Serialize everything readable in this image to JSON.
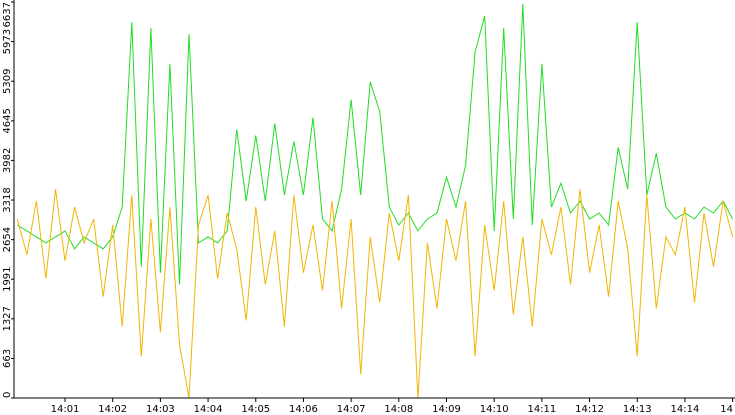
{
  "chart_data": {
    "type": "line",
    "x": [
      0,
      0.2,
      0.4,
      0.6,
      0.8,
      1.0,
      1.2,
      1.4,
      1.6,
      1.8,
      2.0,
      2.2,
      2.4,
      2.6,
      2.8,
      3.0,
      3.2,
      3.4,
      3.6,
      3.8,
      4.0,
      4.2,
      4.4,
      4.6,
      4.8,
      5.0,
      5.2,
      5.4,
      5.6,
      5.8,
      6.0,
      6.2,
      6.4,
      6.6,
      6.8,
      7.0,
      7.2,
      7.4,
      7.6,
      7.8,
      8.0,
      8.2,
      8.4,
      8.6,
      8.8,
      9.0,
      9.2,
      9.4,
      9.6,
      9.8,
      10.0,
      10.2,
      10.4,
      10.6,
      10.8,
      11.0,
      11.2,
      11.4,
      11.6,
      11.8,
      12.0,
      12.2,
      12.4,
      12.6,
      12.8,
      13.0,
      13.2,
      13.4,
      13.6,
      13.8,
      14.0,
      14.2,
      14.4,
      14.6,
      14.8,
      15.0
    ],
    "series": [
      {
        "color": "#22dd22",
        "values": [
          2900,
          2800,
          2700,
          2600,
          2700,
          2800,
          2500,
          2700,
          2600,
          2500,
          2700,
          3200,
          6300,
          2200,
          6200,
          2100,
          5600,
          1900,
          6100,
          2600,
          2700,
          2600,
          2800,
          4500,
          3300,
          4400,
          3300,
          4600,
          3400,
          4300,
          3400,
          4700,
          3000,
          2800,
          3500,
          5000,
          3400,
          5300,
          4800,
          3200,
          2900,
          3100,
          2800,
          3000,
          3100,
          3700,
          3200,
          3900,
          5800,
          6400,
          2800,
          6200,
          3000,
          6600,
          2900,
          5600,
          3200,
          3600,
          3100,
          3300,
          3000,
          3100,
          2900,
          4200,
          3500,
          6300,
          3400,
          4100,
          3200,
          3000,
          3100,
          3000,
          3200,
          3100,
          3300,
          3000
        ]
      },
      {
        "color": "#f2b600",
        "values": [
          3000,
          2400,
          3300,
          2000,
          3500,
          2300,
          3200,
          2600,
          3000,
          1700,
          2900,
          1200,
          3400,
          700,
          3000,
          1100,
          3200,
          900,
          0,
          2900,
          3400,
          2000,
          3100,
          2500,
          1300,
          3200,
          1900,
          2800,
          1200,
          3400,
          2100,
          2900,
          1800,
          3300,
          1500,
          3000,
          400,
          2700,
          1600,
          3100,
          2300,
          3400,
          0,
          2600,
          1500,
          3000,
          2300,
          3300,
          700,
          2900,
          1800,
          3300,
          1400,
          2700,
          1200,
          3000,
          2400,
          3200,
          1900,
          3500,
          2100,
          2900,
          1700,
          3300,
          2500,
          700,
          3400,
          1500,
          2700,
          2400,
          3200,
          1600,
          3100,
          2200,
          3300,
          2700
        ]
      }
    ],
    "xlim": [
      -0.07,
      15.05
    ],
    "xticks": [
      {
        "value": 1,
        "label": "14:01"
      },
      {
        "value": 2,
        "label": "14:02"
      },
      {
        "value": 3,
        "label": "14:03"
      },
      {
        "value": 4,
        "label": "14:04"
      },
      {
        "value": 5,
        "label": "14:05"
      },
      {
        "value": 6,
        "label": "14:06"
      },
      {
        "value": 7,
        "label": "14:07"
      },
      {
        "value": 8,
        "label": "14:08"
      },
      {
        "value": 9,
        "label": "14:09"
      },
      {
        "value": 10,
        "label": "14:10"
      },
      {
        "value": 11,
        "label": "14:11"
      },
      {
        "value": 12,
        "label": "14:12"
      },
      {
        "value": 13,
        "label": "14:13"
      },
      {
        "value": 14,
        "label": "14:14"
      },
      {
        "value": 15,
        "label": "14"
      }
    ],
    "ylim": [
      0,
      6637
    ],
    "yticks": [
      0,
      663,
      1327,
      1991,
      2654,
      3318,
      3982,
      4645,
      5309,
      5973,
      6637
    ]
  }
}
